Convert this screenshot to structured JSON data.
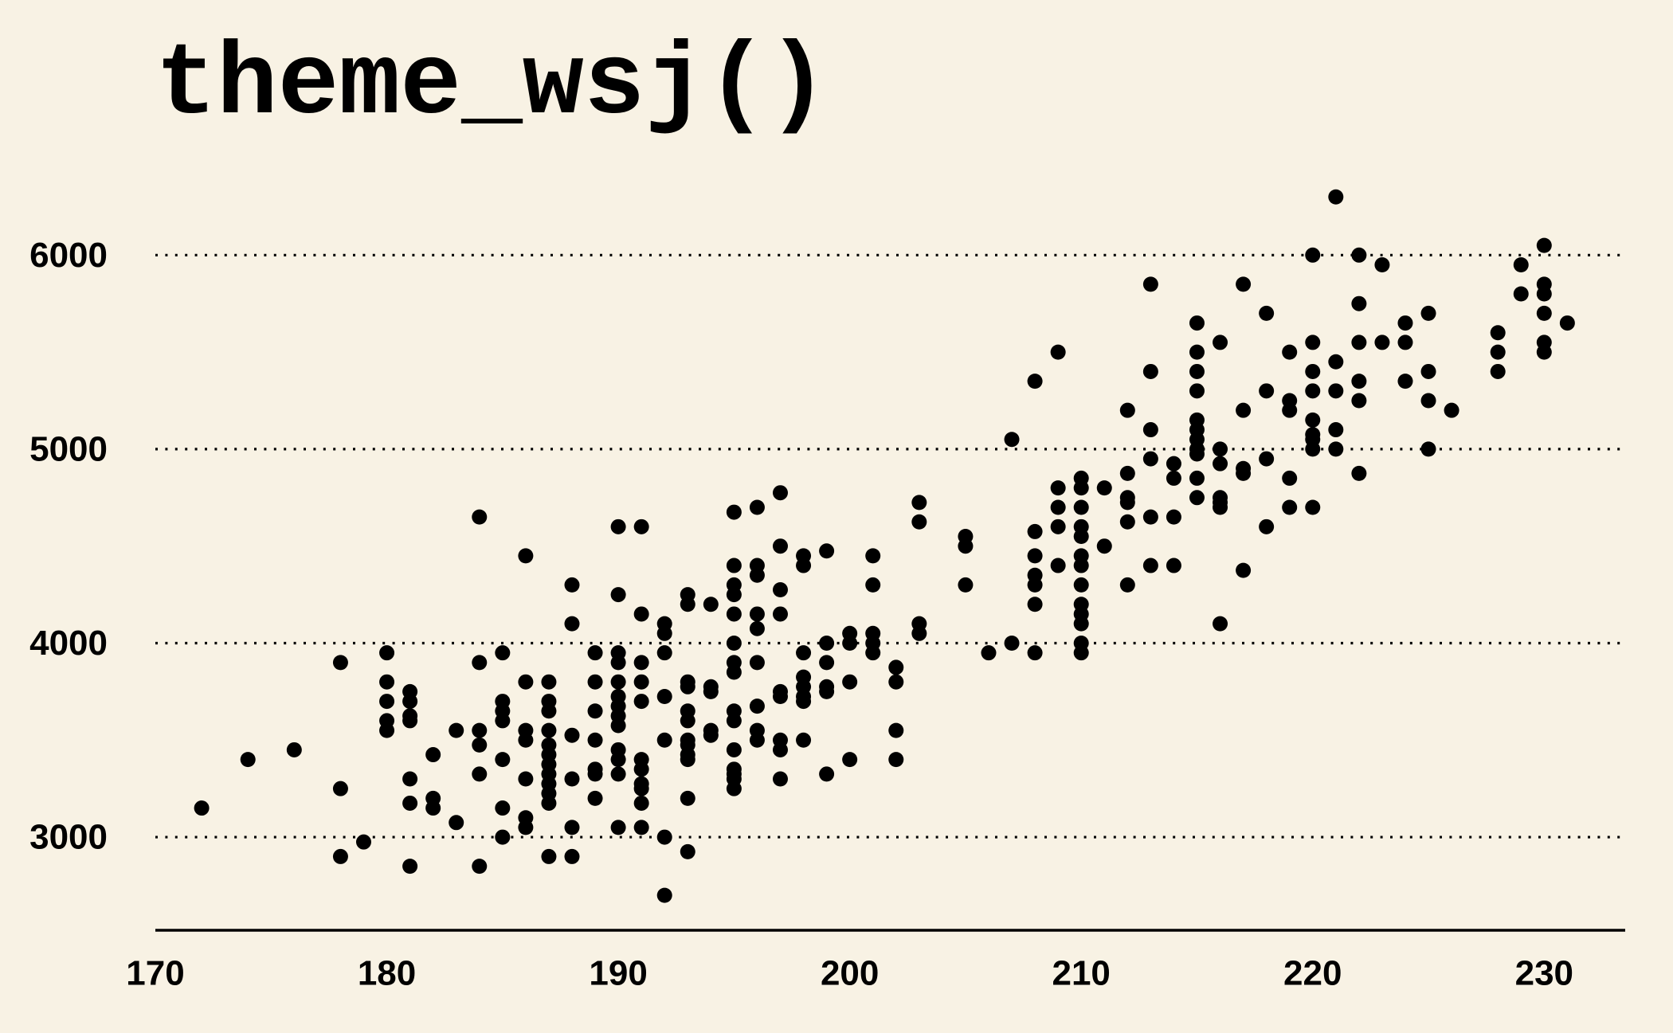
{
  "chart_data": {
    "type": "scatter",
    "title": "theme_wsj()",
    "xlabel": "",
    "ylabel": "",
    "xlim": [
      170,
      233.5
    ],
    "ylim": [
      2520,
      6420
    ],
    "x_ticks": [
      170,
      180,
      190,
      200,
      210,
      220,
      230
    ],
    "y_ticks": [
      3000,
      4000,
      5000,
      6000
    ],
    "grid": "horizontal dotted",
    "legend": "none",
    "colors": {
      "background": "#F8F2E4",
      "points": "#000000",
      "grid": "#000000",
      "axis": "#000000"
    },
    "points": [
      [
        172,
        3150
      ],
      [
        174,
        3400
      ],
      [
        176,
        3450
      ],
      [
        178,
        3900
      ],
      [
        178,
        3250
      ],
      [
        178,
        2900
      ],
      [
        179,
        2975
      ],
      [
        180,
        3950
      ],
      [
        180,
        3800
      ],
      [
        180,
        3700
      ],
      [
        180,
        3600
      ],
      [
        180,
        3550
      ],
      [
        181,
        3750
      ],
      [
        181,
        3700
      ],
      [
        181,
        3625
      ],
      [
        181,
        3600
      ],
      [
        181,
        3300
      ],
      [
        181,
        3175
      ],
      [
        181,
        2850
      ],
      [
        182,
        3425
      ],
      [
        182,
        3200
      ],
      [
        182,
        3150
      ],
      [
        183,
        3550
      ],
      [
        183,
        3075
      ],
      [
        184,
        4650
      ],
      [
        184,
        3900
      ],
      [
        184,
        3550
      ],
      [
        184,
        3475
      ],
      [
        184,
        3325
      ],
      [
        184,
        2850
      ],
      [
        185,
        3950
      ],
      [
        185,
        3700
      ],
      [
        185,
        3650
      ],
      [
        185,
        3600
      ],
      [
        185,
        3400
      ],
      [
        185,
        3150
      ],
      [
        185,
        3000
      ],
      [
        186,
        4450
      ],
      [
        186,
        3800
      ],
      [
        186,
        3550
      ],
      [
        186,
        3500
      ],
      [
        186,
        3300
      ],
      [
        186,
        3100
      ],
      [
        186,
        3050
      ],
      [
        187,
        3800
      ],
      [
        187,
        3700
      ],
      [
        187,
        3650
      ],
      [
        187,
        3550
      ],
      [
        187,
        3475
      ],
      [
        187,
        3425
      ],
      [
        187,
        3375
      ],
      [
        187,
        3325
      ],
      [
        187,
        3275
      ],
      [
        187,
        3225
      ],
      [
        187,
        3175
      ],
      [
        187,
        2900
      ],
      [
        188,
        4300
      ],
      [
        188,
        4100
      ],
      [
        188,
        3525
      ],
      [
        188,
        3300
      ],
      [
        188,
        3050
      ],
      [
        188,
        2900
      ],
      [
        189,
        3950
      ],
      [
        189,
        3800
      ],
      [
        189,
        3650
      ],
      [
        189,
        3500
      ],
      [
        189,
        3350
      ],
      [
        189,
        3325
      ],
      [
        189,
        3200
      ],
      [
        190,
        4600
      ],
      [
        190,
        4250
      ],
      [
        190,
        3950
      ],
      [
        190,
        3900
      ],
      [
        190,
        3800
      ],
      [
        190,
        3725
      ],
      [
        190,
        3675
      ],
      [
        190,
        3625
      ],
      [
        190,
        3575
      ],
      [
        190,
        3450
      ],
      [
        190,
        3400
      ],
      [
        190,
        3325
      ],
      [
        190,
        3050
      ],
      [
        191,
        4600
      ],
      [
        191,
        4150
      ],
      [
        191,
        3900
      ],
      [
        191,
        3800
      ],
      [
        191,
        3700
      ],
      [
        191,
        3400
      ],
      [
        191,
        3350
      ],
      [
        191,
        3275
      ],
      [
        191,
        3250
      ],
      [
        191,
        3175
      ],
      [
        191,
        3050
      ],
      [
        192,
        4100
      ],
      [
        192,
        4050
      ],
      [
        192,
        3950
      ],
      [
        192,
        3725
      ],
      [
        192,
        3500
      ],
      [
        192,
        3000
      ],
      [
        192,
        2700
      ],
      [
        193,
        4250
      ],
      [
        193,
        4200
      ],
      [
        193,
        3800
      ],
      [
        193,
        3775
      ],
      [
        193,
        3650
      ],
      [
        193,
        3600
      ],
      [
        193,
        3500
      ],
      [
        193,
        3475
      ],
      [
        193,
        3425
      ],
      [
        193,
        3400
      ],
      [
        193,
        3200
      ],
      [
        193,
        2925
      ],
      [
        194,
        4200
      ],
      [
        194,
        3775
      ],
      [
        194,
        3750
      ],
      [
        194,
        3550
      ],
      [
        194,
        3525
      ],
      [
        195,
        4675
      ],
      [
        195,
        4400
      ],
      [
        195,
        4300
      ],
      [
        195,
        4250
      ],
      [
        195,
        4150
      ],
      [
        195,
        4000
      ],
      [
        195,
        3900
      ],
      [
        195,
        3850
      ],
      [
        195,
        3650
      ],
      [
        195,
        3600
      ],
      [
        195,
        3450
      ],
      [
        195,
        3350
      ],
      [
        195,
        3325
      ],
      [
        195,
        3300
      ],
      [
        195,
        3250
      ],
      [
        196,
        4700
      ],
      [
        196,
        4400
      ],
      [
        196,
        4350
      ],
      [
        196,
        4150
      ],
      [
        196,
        4075
      ],
      [
        196,
        3900
      ],
      [
        196,
        3675
      ],
      [
        196,
        3550
      ],
      [
        196,
        3500
      ],
      [
        197,
        4775
      ],
      [
        197,
        4500
      ],
      [
        197,
        4275
      ],
      [
        197,
        4150
      ],
      [
        197,
        3750
      ],
      [
        197,
        3725
      ],
      [
        197,
        3500
      ],
      [
        197,
        3450
      ],
      [
        197,
        3300
      ],
      [
        198,
        4450
      ],
      [
        198,
        4400
      ],
      [
        198,
        3950
      ],
      [
        198,
        3825
      ],
      [
        198,
        3775
      ],
      [
        198,
        3725
      ],
      [
        198,
        3700
      ],
      [
        198,
        3500
      ],
      [
        199,
        4475
      ],
      [
        199,
        4000
      ],
      [
        199,
        3900
      ],
      [
        199,
        3775
      ],
      [
        199,
        3750
      ],
      [
        199,
        3325
      ],
      [
        200,
        4050
      ],
      [
        200,
        4000
      ],
      [
        200,
        3800
      ],
      [
        200,
        3400
      ],
      [
        201,
        4450
      ],
      [
        201,
        4300
      ],
      [
        201,
        4050
      ],
      [
        201,
        4000
      ],
      [
        201,
        3950
      ],
      [
        202,
        3875
      ],
      [
        202,
        3800
      ],
      [
        202,
        3550
      ],
      [
        202,
        3400
      ],
      [
        203,
        4725
      ],
      [
        203,
        4625
      ],
      [
        203,
        4100
      ],
      [
        203,
        4050
      ],
      [
        205,
        4550
      ],
      [
        205,
        4500
      ],
      [
        205,
        4300
      ],
      [
        206,
        3950
      ],
      [
        207,
        5050
      ],
      [
        207,
        4000
      ],
      [
        208,
        5350
      ],
      [
        208,
        4575
      ],
      [
        208,
        4450
      ],
      [
        208,
        4350
      ],
      [
        208,
        4300
      ],
      [
        208,
        4200
      ],
      [
        208,
        3950
      ],
      [
        209,
        5500
      ],
      [
        209,
        4800
      ],
      [
        209,
        4700
      ],
      [
        209,
        4600
      ],
      [
        209,
        4400
      ],
      [
        210,
        4850
      ],
      [
        210,
        4800
      ],
      [
        210,
        4700
      ],
      [
        210,
        4600
      ],
      [
        210,
        4550
      ],
      [
        210,
        4450
      ],
      [
        210,
        4400
      ],
      [
        210,
        4300
      ],
      [
        210,
        4200
      ],
      [
        210,
        4150
      ],
      [
        210,
        4100
      ],
      [
        210,
        4000
      ],
      [
        210,
        3950
      ],
      [
        211,
        4800
      ],
      [
        211,
        4500
      ],
      [
        212,
        5200
      ],
      [
        212,
        4875
      ],
      [
        212,
        4750
      ],
      [
        212,
        4725
      ],
      [
        212,
        4625
      ],
      [
        212,
        4300
      ],
      [
        213,
        5850
      ],
      [
        213,
        5400
      ],
      [
        213,
        5100
      ],
      [
        213,
        4950
      ],
      [
        213,
        4650
      ],
      [
        213,
        4400
      ],
      [
        214,
        4925
      ],
      [
        214,
        4850
      ],
      [
        214,
        4650
      ],
      [
        214,
        4400
      ],
      [
        215,
        5650
      ],
      [
        215,
        5500
      ],
      [
        215,
        5400
      ],
      [
        215,
        5300
      ],
      [
        215,
        5150
      ],
      [
        215,
        5100
      ],
      [
        215,
        5050
      ],
      [
        215,
        5000
      ],
      [
        215,
        4975
      ],
      [
        215,
        4850
      ],
      [
        215,
        4750
      ],
      [
        216,
        5550
      ],
      [
        216,
        5000
      ],
      [
        216,
        4925
      ],
      [
        216,
        4750
      ],
      [
        216,
        4725
      ],
      [
        216,
        4700
      ],
      [
        216,
        4100
      ],
      [
        217,
        5850
      ],
      [
        217,
        5200
      ],
      [
        217,
        4900
      ],
      [
        217,
        4875
      ],
      [
        217,
        4375
      ],
      [
        218,
        5700
      ],
      [
        218,
        5300
      ],
      [
        218,
        4950
      ],
      [
        218,
        4600
      ],
      [
        219,
        5500
      ],
      [
        219,
        5250
      ],
      [
        219,
        5200
      ],
      [
        219,
        4850
      ],
      [
        219,
        4700
      ],
      [
        220,
        6000
      ],
      [
        220,
        5550
      ],
      [
        220,
        5400
      ],
      [
        220,
        5300
      ],
      [
        220,
        5150
      ],
      [
        220,
        5075
      ],
      [
        220,
        5050
      ],
      [
        220,
        5000
      ],
      [
        220,
        4700
      ],
      [
        221,
        6300
      ],
      [
        221,
        5450
      ],
      [
        221,
        5300
      ],
      [
        221,
        5100
      ],
      [
        221,
        5000
      ],
      [
        222,
        6000
      ],
      [
        222,
        5750
      ],
      [
        222,
        5550
      ],
      [
        222,
        5350
      ],
      [
        222,
        5250
      ],
      [
        222,
        4875
      ],
      [
        223,
        5950
      ],
      [
        223,
        5550
      ],
      [
        224,
        5650
      ],
      [
        224,
        5550
      ],
      [
        224,
        5350
      ],
      [
        225,
        5700
      ],
      [
        225,
        5400
      ],
      [
        225,
        5250
      ],
      [
        225,
        5000
      ],
      [
        226,
        5200
      ],
      [
        228,
        5600
      ],
      [
        228,
        5500
      ],
      [
        228,
        5400
      ],
      [
        229,
        5950
      ],
      [
        229,
        5800
      ],
      [
        230,
        6050
      ],
      [
        230,
        5850
      ],
      [
        230,
        5800
      ],
      [
        230,
        5700
      ],
      [
        230,
        5550
      ],
      [
        230,
        5500
      ],
      [
        231,
        5650
      ]
    ]
  }
}
